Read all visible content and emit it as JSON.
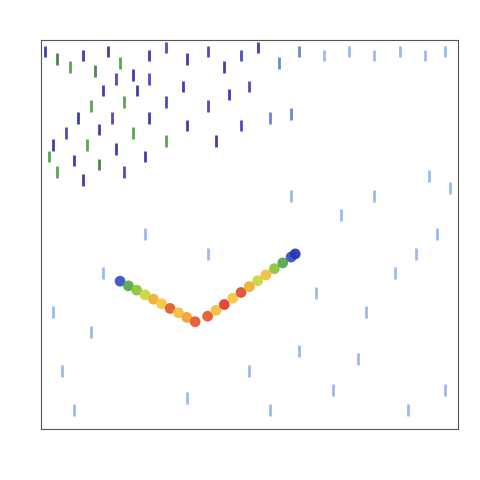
{
  "chart_data": {
    "type": "scatter",
    "tick_labels": false,
    "xlim": [
      0,
      100
    ],
    "ylim": [
      100,
      0
    ],
    "xticks": [],
    "yticks": [],
    "series": [
      {
        "marker": "circle",
        "x": [
          19,
          21,
          23,
          25,
          27,
          29,
          31,
          33,
          35,
          37,
          40,
          42,
          44,
          46,
          48,
          50,
          52,
          54,
          56,
          58,
          60,
          61
        ],
        "values": [
          62,
          63.2,
          64.3,
          65.5,
          66.6,
          67.8,
          69,
          70.1,
          71.3,
          72.4,
          71,
          69.5,
          68,
          66.4,
          64.9,
          63.4,
          61.9,
          60.4,
          58.8,
          57.3,
          55.8,
          55
        ],
        "colors": [
          "#3a55c8",
          "#5aa84a",
          "#8cc63f",
          "#c8d640",
          "#f0b030",
          "#f5c842",
          "#e06030",
          "#f0c040",
          "#f5a030",
          "#e85a30",
          "#e85a30",
          "#f0c040",
          "#e04030",
          "#f5c842",
          "#e05030",
          "#f0b030",
          "#c8d640",
          "#f0c040",
          "#8cc63f",
          "#5aa84a",
          "#3a55c8",
          "#2a35b0"
        ]
      },
      {
        "marker": "vline",
        "x": [
          1,
          4,
          7,
          10,
          13,
          16,
          19,
          22,
          26,
          30,
          35,
          40,
          44,
          48,
          52,
          57,
          62,
          68,
          74,
          80,
          86,
          92,
          97,
          2,
          3,
          6,
          9,
          12,
          15,
          18,
          4,
          8,
          11,
          14,
          17,
          20,
          23,
          26,
          10,
          14,
          18,
          22,
          26,
          30,
          34,
          20,
          25,
          30,
          35,
          40,
          45,
          50,
          42,
          48,
          55,
          60
        ],
        "values": [
          3,
          5,
          7,
          4,
          8,
          3,
          6,
          9,
          4,
          2,
          5,
          3,
          7,
          4,
          2,
          6,
          3,
          4,
          3,
          4,
          3,
          4,
          3,
          30,
          27,
          24,
          20,
          17,
          13,
          10,
          34,
          31,
          27,
          23,
          20,
          16,
          13,
          10,
          36,
          32,
          28,
          24,
          20,
          16,
          12,
          34,
          30,
          26,
          22,
          17,
          14,
          12,
          26,
          22,
          20,
          19
        ],
        "colors": [
          "#2a2aa0",
          "#3a7a3a",
          "#4a9a40",
          "#2a2aa0",
          "#3a7a3a",
          "#2a2aa0",
          "#4a9a40",
          "#2a2aa0",
          "#2a2aa0",
          "#3a3ab8",
          "#2a2aa0",
          "#3a3ab8",
          "#2a2aa0",
          "#3a3ab8",
          "#2a2aa0",
          "#5a7ad0",
          "#5a7ad0",
          "#8fb4e8",
          "#8fb4e8",
          "#8fb4e8",
          "#8fb4e8",
          "#8fb4e8",
          "#8fb4e8",
          "#4a9a40",
          "#2a2aa0",
          "#3a3ab8",
          "#2a2aa0",
          "#4a9a40",
          "#2a2aa0",
          "#3a3ab8",
          "#4a9a40",
          "#2a2aa0",
          "#4a9a40",
          "#2a2aa0",
          "#3a3ab8",
          "#4a9a40",
          "#2a2aa0",
          "#3a3ab8",
          "#2a2aa0",
          "#3a7a3a",
          "#2a2aa0",
          "#4a9a40",
          "#2a2aa0",
          "#3a3ab8",
          "#2a2aa0",
          "#3a3ab8",
          "#2a2aa0",
          "#4a9a40",
          "#2a2aa0",
          "#3a3ab8",
          "#2a2aa0",
          "#3a3ab8",
          "#2a2aa0",
          "#3a3ab8",
          "#5a7ad0",
          "#5a7ad0"
        ]
      },
      {
        "marker": "vline",
        "x": [
          5,
          12,
          8,
          35,
          50,
          62,
          70,
          78,
          85,
          90,
          95,
          88,
          72,
          80,
          93,
          98,
          60,
          55,
          40,
          25,
          15,
          3,
          66,
          76,
          97
        ],
        "values": [
          85,
          75,
          95,
          92,
          85,
          80,
          90,
          70,
          60,
          55,
          50,
          95,
          45,
          40,
          35,
          38,
          40,
          95,
          55,
          50,
          60,
          70,
          65,
          82,
          90
        ],
        "color": "#8fb4e8"
      }
    ]
  }
}
